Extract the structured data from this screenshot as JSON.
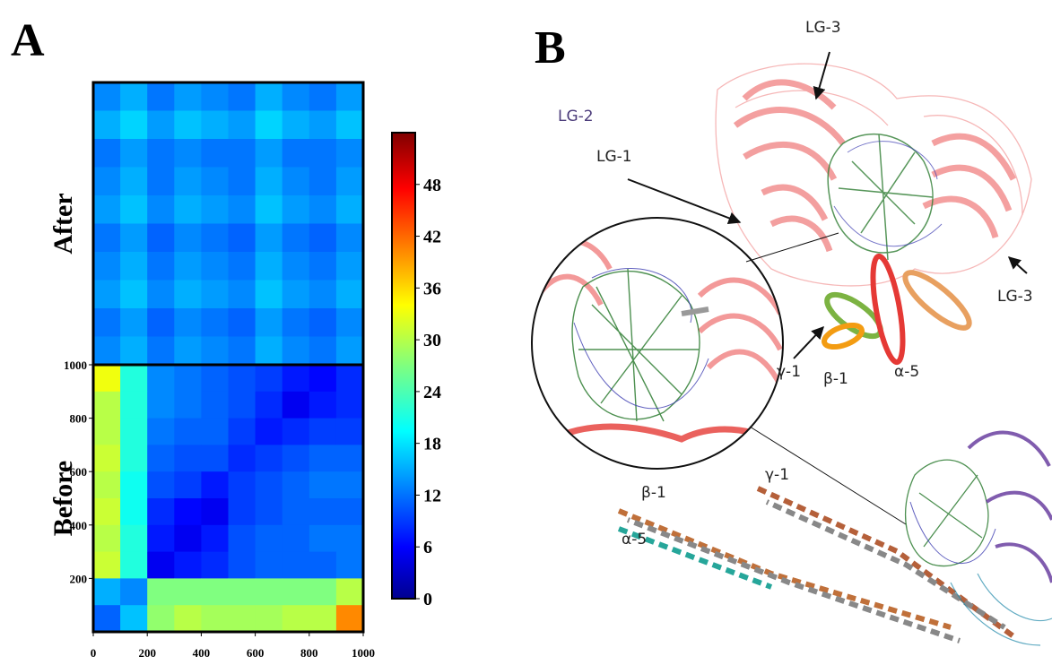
{
  "panel_labels": [
    "A",
    "B"
  ],
  "chart_data": {
    "type": "heatmap",
    "x": [
      50,
      150,
      250,
      350,
      450,
      550,
      650,
      750,
      850,
      950
    ],
    "y": [
      950,
      850,
      750,
      650,
      550,
      450,
      350,
      250,
      150,
      50
    ],
    "xlim": [
      0,
      1000
    ],
    "ylim": [
      0,
      1000
    ],
    "xticks": [
      0,
      200,
      400,
      600,
      800,
      1000
    ],
    "yticks": [
      200,
      400,
      600,
      800,
      1000
    ],
    "colorbar_lim": [
      0,
      54
    ],
    "colorbar_ticks": [
      0,
      6,
      12,
      18,
      24,
      30,
      36,
      42,
      48
    ],
    "panels": [
      {
        "name": "After",
        "values": [
          [
            14,
            16,
            13,
            15,
            14,
            13,
            16,
            14,
            13,
            15
          ],
          [
            16,
            18,
            15,
            17,
            16,
            15,
            18,
            16,
            15,
            17
          ],
          [
            13,
            15,
            13,
            14,
            13,
            13,
            15,
            13,
            13,
            14
          ],
          [
            14,
            16,
            13,
            15,
            14,
            13,
            16,
            14,
            13,
            15
          ],
          [
            15,
            17,
            14,
            16,
            15,
            14,
            17,
            15,
            14,
            16
          ],
          [
            13,
            15,
            12,
            14,
            13,
            12,
            15,
            13,
            12,
            14
          ],
          [
            14,
            16,
            13,
            15,
            14,
            13,
            16,
            14,
            13,
            15
          ],
          [
            15,
            17,
            14,
            16,
            15,
            14,
            17,
            15,
            14,
            16
          ],
          [
            13,
            15,
            12,
            14,
            13,
            12,
            15,
            13,
            12,
            14
          ],
          [
            14,
            16,
            13,
            15,
            14,
            13,
            16,
            14,
            13,
            15
          ]
        ]
      },
      {
        "name": "Before",
        "values": [
          [
            33,
            22,
            14,
            13,
            12,
            11,
            10,
            8,
            7,
            9
          ],
          [
            30,
            22,
            14,
            13,
            12,
            11,
            9,
            6,
            8,
            9
          ],
          [
            30,
            22,
            13,
            12,
            12,
            10,
            8,
            9,
            10,
            10
          ],
          [
            31,
            22,
            12,
            11,
            11,
            9,
            10,
            11,
            12,
            12
          ],
          [
            30,
            21,
            11,
            10,
            8,
            10,
            11,
            12,
            13,
            13
          ],
          [
            31,
            21,
            9,
            7,
            6,
            10,
            11,
            12,
            12,
            12
          ],
          [
            30,
            22,
            8,
            6,
            8,
            11,
            12,
            12,
            13,
            13
          ],
          [
            31,
            22,
            6,
            8,
            9,
            11,
            12,
            12,
            12,
            13
          ],
          [
            16,
            14,
            27,
            27,
            27,
            27,
            27,
            27,
            27,
            30
          ],
          [
            12,
            17,
            28,
            30,
            29,
            29,
            29,
            30,
            30,
            40
          ]
        ]
      }
    ]
  },
  "structure_labels": [
    "LG-3",
    "LG-2",
    "LG-1",
    "LG-3",
    "γ-1",
    "β-1",
    "α-5",
    "β-1",
    "γ-1",
    "α-5"
  ]
}
